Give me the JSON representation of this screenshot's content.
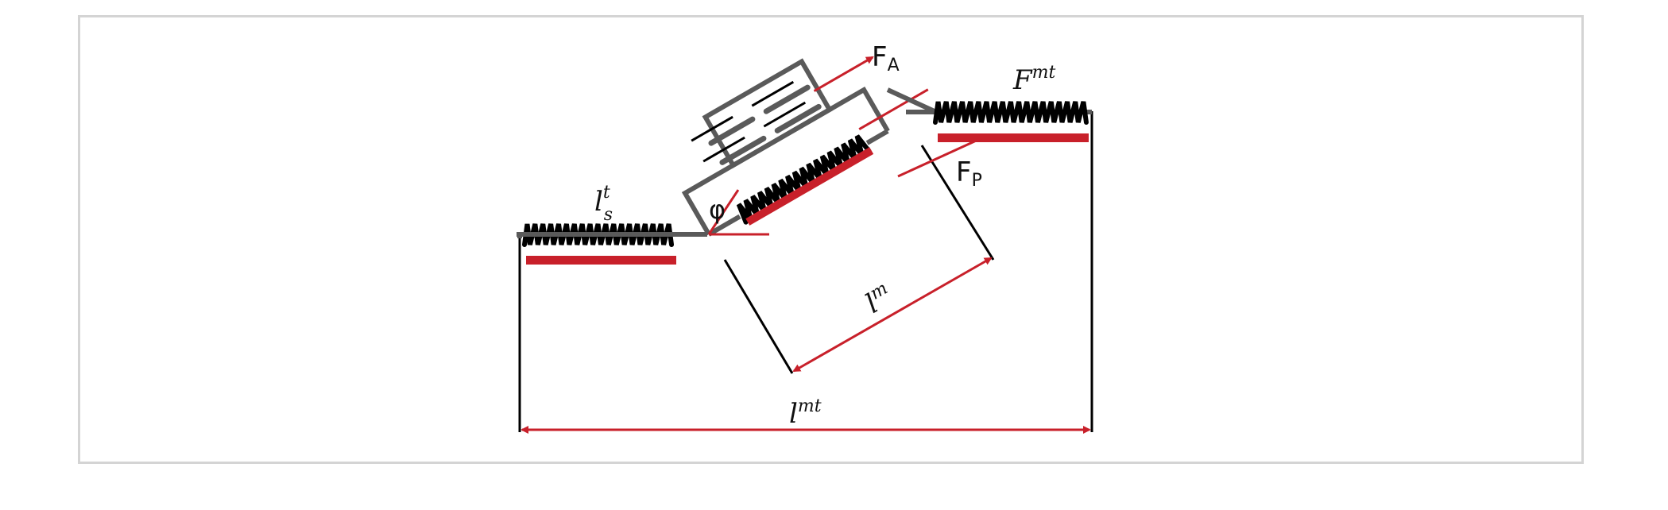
{
  "labels": {
    "force_active": {
      "base": "F",
      "sub": "A"
    },
    "force_passive": {
      "base": "F",
      "sub": "P"
    },
    "force_musculotendon": {
      "base": "F",
      "sup": "mt"
    },
    "tendon_slack_length": {
      "base": "l",
      "sup": "t",
      "sub": "s"
    },
    "muscle_length": {
      "base": "l",
      "sup": "m"
    },
    "musculotendon_length": {
      "base": "l",
      "sup": "mt"
    },
    "pennation_angle": "φ"
  },
  "colors": {
    "force_arrows": "#c8202a",
    "structure": "#5a5a5a",
    "springs": "#000000",
    "frame_border": "#d4d4d4"
  }
}
